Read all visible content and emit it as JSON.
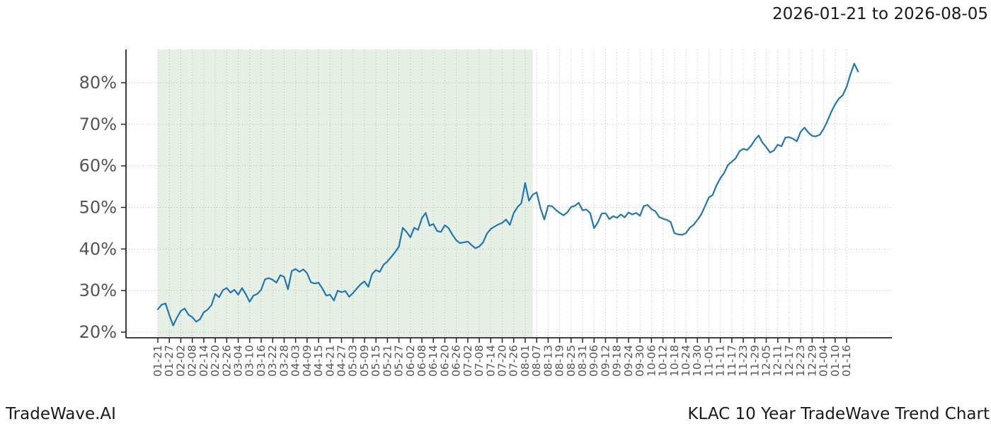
{
  "header": {
    "date_range": "2026-01-21 to 2026-08-05"
  },
  "footer": {
    "brand": "TradeWave.AI",
    "chart_title": "KLAC 10 Year TradeWave Trend Chart"
  },
  "chart_data": {
    "type": "line",
    "title": "2026-01-21 to 2026-08-05",
    "ylabel": "",
    "y_unit": "%",
    "y_ticks": [
      20,
      30,
      40,
      50,
      60,
      70,
      80
    ],
    "ylim": [
      18.5,
      88.5
    ],
    "grid": true,
    "x_tick_step_days": 6,
    "x_tick_labels": [
      "01-21",
      "01-27",
      "02-02",
      "02-08",
      "02-14",
      "02-20",
      "02-26",
      "03-04",
      "03-10",
      "03-16",
      "03-22",
      "03-28",
      "04-03",
      "04-09",
      "04-15",
      "04-21",
      "04-27",
      "05-03",
      "05-09",
      "05-15",
      "05-21",
      "05-27",
      "06-02",
      "06-08",
      "06-14",
      "06-20",
      "06-26",
      "07-02",
      "07-08",
      "07-14",
      "07-20",
      "07-26",
      "08-01",
      "08-07",
      "08-13",
      "08-19",
      "08-25",
      "08-31",
      "09-06",
      "09-12",
      "09-18",
      "09-24",
      "09-30",
      "10-06",
      "10-12",
      "10-18",
      "10-24",
      "10-30",
      "11-05",
      "11-11",
      "11-17",
      "11-23",
      "11-29",
      "12-05",
      "12-11",
      "12-17",
      "12-23",
      "12-29",
      "01-04",
      "01-10",
      "01-16"
    ],
    "highlight_region": {
      "from": "2026-01-21",
      "to": "2026-08-05",
      "start_day": 0,
      "end_day": 196,
      "color": "#e7f0e4"
    },
    "series": [
      {
        "name": "KLAC 10 Year TradeWave Trend",
        "color": "#1f77b4",
        "start_date": "01-21",
        "step_days": 2,
        "values": [
          25.5,
          26.6,
          26.9,
          24.1,
          21.6,
          23.5,
          25.1,
          25.7,
          24.2,
          23.6,
          22.5,
          23.1,
          24.8,
          25.4,
          26.5,
          29.2,
          28.4,
          30.1,
          30.6,
          29.5,
          30.2,
          29.0,
          30.6,
          29.1,
          27.3,
          28.8,
          29.2,
          30.2,
          32.7,
          33.0,
          32.6,
          31.9,
          33.7,
          33.3,
          30.3,
          34.7,
          35.2,
          34.5,
          35.1,
          34.2,
          32.0,
          31.7,
          31.9,
          30.5,
          28.8,
          29.0,
          27.6,
          30.0,
          29.6,
          29.9,
          28.5,
          29.4,
          30.5,
          31.5,
          32.2,
          30.9,
          34.0,
          34.9,
          34.5,
          36.2,
          37.0,
          38.1,
          39.2,
          40.6,
          45.1,
          44.1,
          42.8,
          45.1,
          44.6,
          47.4,
          48.7,
          45.6,
          46.0,
          44.3,
          44.1,
          45.7,
          45.0,
          43.4,
          42.1,
          41.4,
          41.6,
          41.8,
          40.9,
          40.2,
          40.6,
          41.6,
          43.7,
          44.8,
          45.4,
          45.9,
          46.3,
          47.1,
          45.8,
          48.6,
          50.1,
          51.0,
          55.9,
          51.6,
          53.1,
          53.6,
          49.8,
          47.1,
          50.4,
          50.3,
          49.4,
          48.7,
          48.1,
          48.8,
          50.1,
          50.4,
          51.1,
          49.3,
          49.5,
          48.6,
          45.0,
          46.4,
          48.5,
          48.6,
          47.2,
          47.9,
          47.5,
          48.3,
          47.6,
          48.8,
          48.3,
          48.7,
          48.0,
          50.3,
          50.6,
          49.6,
          49.1,
          47.7,
          47.3,
          47.0,
          46.5,
          43.8,
          43.5,
          43.4,
          43.8,
          45.1,
          45.8,
          47.0,
          48.3,
          50.3,
          52.4,
          53.0,
          55.3,
          57.0,
          58.3,
          60.2,
          61.0,
          61.8,
          63.5,
          64.1,
          63.8,
          64.8,
          66.2,
          67.3,
          65.6,
          64.5,
          63.2,
          63.7,
          65.1,
          64.7,
          66.8,
          66.9,
          66.5,
          65.9,
          68.2,
          69.2,
          68.0,
          67.2,
          67.1,
          67.5,
          68.9,
          70.8,
          73.0,
          74.8,
          76.2,
          77.0,
          79.0,
          82.0,
          84.6,
          82.7
        ]
      }
    ],
    "colors": {
      "line": "#1f77b4",
      "highlight": "#e7f0e4",
      "grid": "#b9b9b9",
      "spine": "#262626",
      "tick_label": "#555555",
      "text": "#1a1a1a"
    }
  }
}
